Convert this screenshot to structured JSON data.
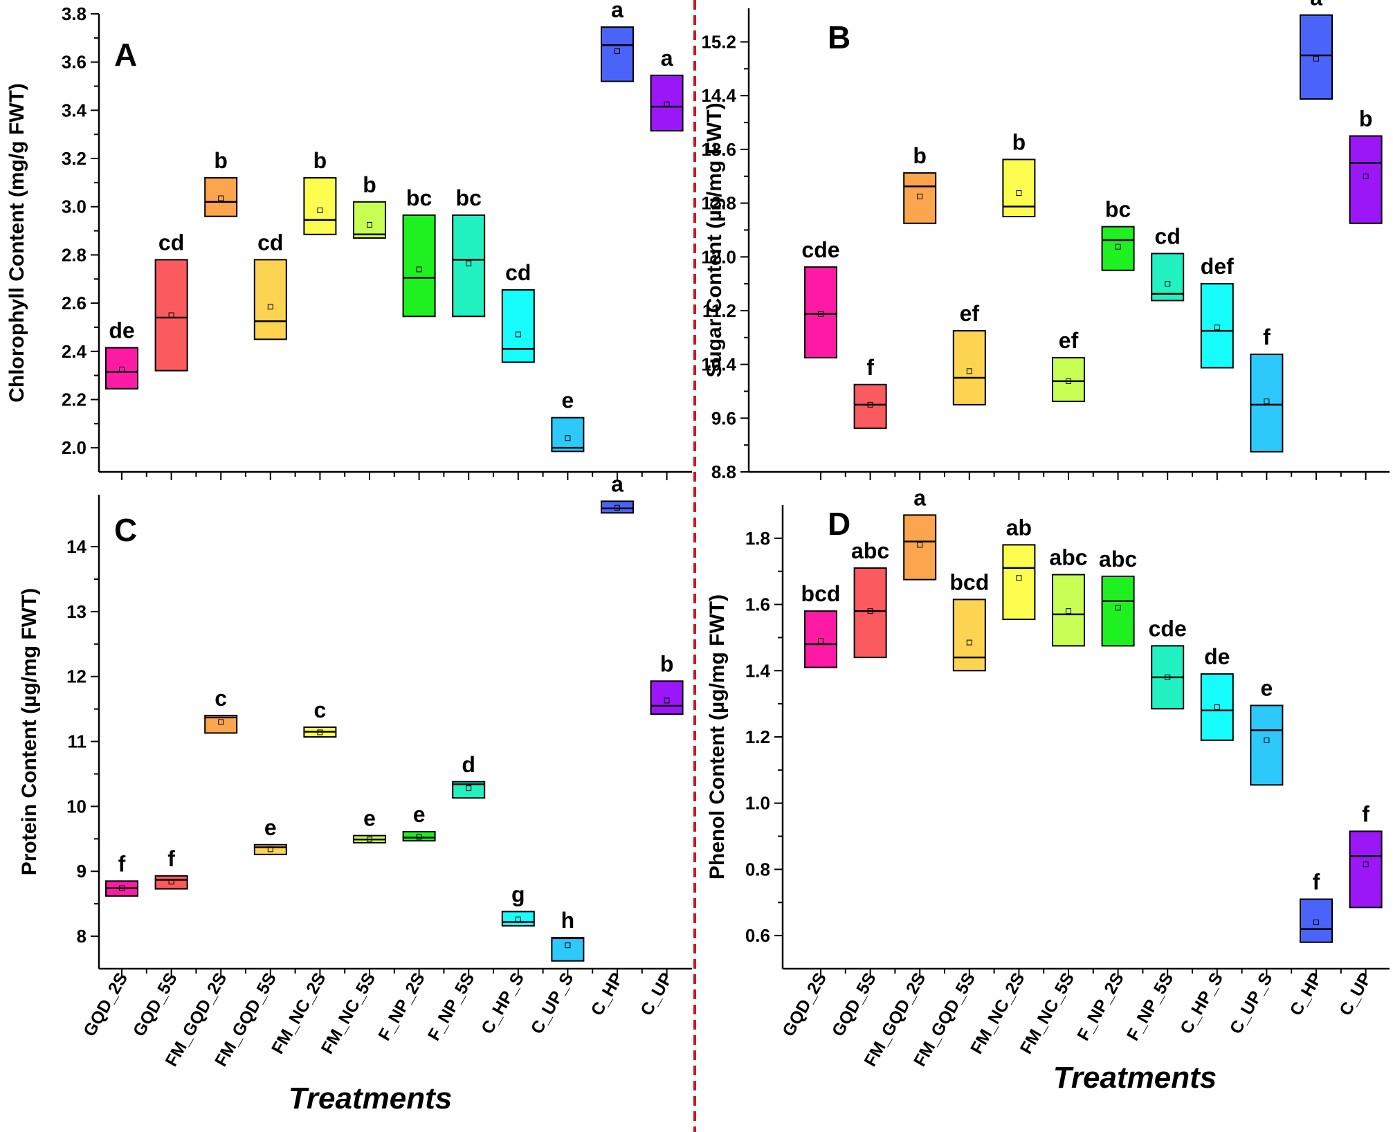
{
  "categories": [
    "GQD_2S",
    "GQD_5S",
    "FM_GQD_2S",
    "FM_GQD_5S",
    "FM_NC_2S",
    "FM_NC_5S",
    "F_NP_2S",
    "F_NP_5S",
    "C_HP_S",
    "C_UP_S",
    "C_HP",
    "C_UP"
  ],
  "colors": [
    "#ff1aa6",
    "#fb5a5e",
    "#fba54f",
    "#fcd452",
    "#fdfd4f",
    "#c8ff55",
    "#1ef11f",
    "#22f1c1",
    "#17fdfd",
    "#2ec9fb",
    "#4a64fa",
    "#9b17f7"
  ],
  "x_axis_title": "Treatments",
  "chart_data": [
    {
      "panel": "A",
      "type": "box",
      "ylabel": "Chlorophyll Content (mg/g FWT)",
      "ylim": [
        1.9,
        3.8
      ],
      "yticks": [
        2.0,
        2.2,
        2.4,
        2.6,
        2.8,
        3.0,
        3.2,
        3.4,
        3.6,
        3.8
      ],
      "decimals": 1,
      "boxes": [
        {
          "low": 2.245,
          "high": 2.415,
          "median": 2.315,
          "mean": 2.325,
          "label": "de"
        },
        {
          "low": 2.32,
          "high": 2.78,
          "median": 2.54,
          "mean": 2.55,
          "label": "cd"
        },
        {
          "low": 2.96,
          "high": 3.12,
          "median": 3.02,
          "mean": 3.035,
          "label": "b"
        },
        {
          "low": 2.45,
          "high": 2.78,
          "median": 2.525,
          "mean": 2.585,
          "label": "cd"
        },
        {
          "low": 2.885,
          "high": 3.12,
          "median": 2.945,
          "mean": 2.985,
          "label": "b"
        },
        {
          "low": 2.87,
          "high": 3.02,
          "median": 2.885,
          "mean": 2.925,
          "label": "b"
        },
        {
          "low": 2.545,
          "high": 2.965,
          "median": 2.705,
          "mean": 2.74,
          "label": "bc"
        },
        {
          "low": 2.545,
          "high": 2.965,
          "median": 2.78,
          "mean": 2.765,
          "label": "bc"
        },
        {
          "low": 2.355,
          "high": 2.655,
          "median": 2.41,
          "mean": 2.47,
          "label": "cd"
        },
        {
          "low": 1.985,
          "high": 2.125,
          "median": 2.0,
          "mean": 2.04,
          "label": "e"
        },
        {
          "low": 3.52,
          "high": 3.745,
          "median": 3.67,
          "mean": 3.645,
          "label": "a"
        },
        {
          "low": 3.315,
          "high": 3.545,
          "median": 3.415,
          "mean": 3.425,
          "label": "a"
        }
      ]
    },
    {
      "panel": "B",
      "type": "box",
      "ylabel": "Sugar  Content (µg/mg FWT)",
      "ylim": [
        8.8,
        15.7
      ],
      "yticks": [
        8.8,
        9.6,
        10.4,
        11.2,
        12.0,
        12.8,
        13.6,
        14.4,
        15.2
      ],
      "decimals": 1,
      "boxes": [
        {
          "low": 10.5,
          "high": 11.85,
          "median": 11.15,
          "mean": 11.15,
          "label": "cde"
        },
        {
          "low": 9.45,
          "high": 10.1,
          "median": 9.8,
          "mean": 9.8,
          "label": "f"
        },
        {
          "low": 12.5,
          "high": 13.25,
          "median": 13.05,
          "mean": 12.9,
          "label": "b"
        },
        {
          "low": 9.8,
          "high": 10.9,
          "median": 10.2,
          "mean": 10.3,
          "label": "ef"
        },
        {
          "low": 12.6,
          "high": 13.45,
          "median": 12.75,
          "mean": 12.95,
          "label": "b"
        },
        {
          "low": 9.85,
          "high": 10.5,
          "median": 10.15,
          "mean": 10.15,
          "label": "ef"
        },
        {
          "low": 11.8,
          "high": 12.45,
          "median": 12.25,
          "mean": 12.15,
          "label": "bc"
        },
        {
          "low": 11.35,
          "high": 12.05,
          "median": 11.45,
          "mean": 11.6,
          "label": "cd"
        },
        {
          "low": 10.35,
          "high": 11.6,
          "median": 10.9,
          "mean": 10.95,
          "label": "def"
        },
        {
          "low": 9.1,
          "high": 10.55,
          "median": 9.8,
          "mean": 9.85,
          "label": "f"
        },
        {
          "low": 14.35,
          "high": 15.6,
          "median": 15.0,
          "mean": 14.95,
          "label": "a"
        },
        {
          "low": 12.5,
          "high": 13.8,
          "median": 13.4,
          "mean": 13.2,
          "label": "b"
        }
      ]
    },
    {
      "panel": "C",
      "type": "box",
      "ylabel": "Protein  Content (µg/mg FWT)",
      "ylim": [
        7.5,
        14.8
      ],
      "yticks": [
        8,
        9,
        10,
        11,
        12,
        13,
        14
      ],
      "decimals": 0,
      "boxes": [
        {
          "low": 8.62,
          "high": 8.85,
          "median": 8.74,
          "mean": 8.74,
          "label": "f"
        },
        {
          "low": 8.73,
          "high": 8.93,
          "median": 8.87,
          "mean": 8.84,
          "label": "f"
        },
        {
          "low": 11.13,
          "high": 11.4,
          "median": 11.37,
          "mean": 11.3,
          "label": "c"
        },
        {
          "low": 9.26,
          "high": 9.41,
          "median": 9.37,
          "mean": 9.34,
          "label": "e"
        },
        {
          "low": 11.07,
          "high": 11.22,
          "median": 11.15,
          "mean": 11.14,
          "label": "c"
        },
        {
          "low": 9.44,
          "high": 9.55,
          "median": 9.49,
          "mean": 9.49,
          "label": "e"
        },
        {
          "low": 9.47,
          "high": 9.61,
          "median": 9.52,
          "mean": 9.53,
          "label": "e"
        },
        {
          "low": 10.13,
          "high": 10.38,
          "median": 10.34,
          "mean": 10.28,
          "label": "d"
        },
        {
          "low": 8.16,
          "high": 8.38,
          "median": 8.22,
          "mean": 8.26,
          "label": "g"
        },
        {
          "low": 7.62,
          "high": 7.98,
          "median": 7.97,
          "mean": 7.86,
          "label": "h"
        },
        {
          "low": 14.52,
          "high": 14.7,
          "median": 14.59,
          "mean": 14.6,
          "label": "a"
        },
        {
          "low": 11.42,
          "high": 11.93,
          "median": 11.55,
          "mean": 11.63,
          "label": "b"
        }
      ]
    },
    {
      "panel": "D",
      "type": "box",
      "ylabel": "Phenol  Content (µg/mg FWT)",
      "ylim": [
        0.5,
        1.9
      ],
      "yticks": [
        0.6,
        0.8,
        1.0,
        1.2,
        1.4,
        1.6,
        1.8
      ],
      "decimals": 1,
      "boxes": [
        {
          "low": 1.41,
          "high": 1.58,
          "median": 1.48,
          "mean": 1.49,
          "label": "bcd"
        },
        {
          "low": 1.44,
          "high": 1.71,
          "median": 1.58,
          "mean": 1.58,
          "label": "abc"
        },
        {
          "low": 1.675,
          "high": 1.87,
          "median": 1.79,
          "mean": 1.78,
          "label": "a"
        },
        {
          "low": 1.4,
          "high": 1.615,
          "median": 1.44,
          "mean": 1.485,
          "label": "bcd"
        },
        {
          "low": 1.555,
          "high": 1.78,
          "median": 1.71,
          "mean": 1.68,
          "label": "ab"
        },
        {
          "low": 1.475,
          "high": 1.69,
          "median": 1.57,
          "mean": 1.58,
          "label": "abc"
        },
        {
          "low": 1.475,
          "high": 1.685,
          "median": 1.61,
          "mean": 1.59,
          "label": "abc"
        },
        {
          "low": 1.285,
          "high": 1.475,
          "median": 1.38,
          "mean": 1.38,
          "label": "cde"
        },
        {
          "low": 1.19,
          "high": 1.39,
          "median": 1.28,
          "mean": 1.29,
          "label": "de"
        },
        {
          "low": 1.055,
          "high": 1.295,
          "median": 1.22,
          "mean": 1.19,
          "label": "e"
        },
        {
          "low": 0.58,
          "high": 0.71,
          "median": 0.62,
          "mean": 0.64,
          "label": "f"
        },
        {
          "low": 0.685,
          "high": 0.915,
          "median": 0.84,
          "mean": 0.815,
          "label": "f"
        }
      ]
    }
  ]
}
